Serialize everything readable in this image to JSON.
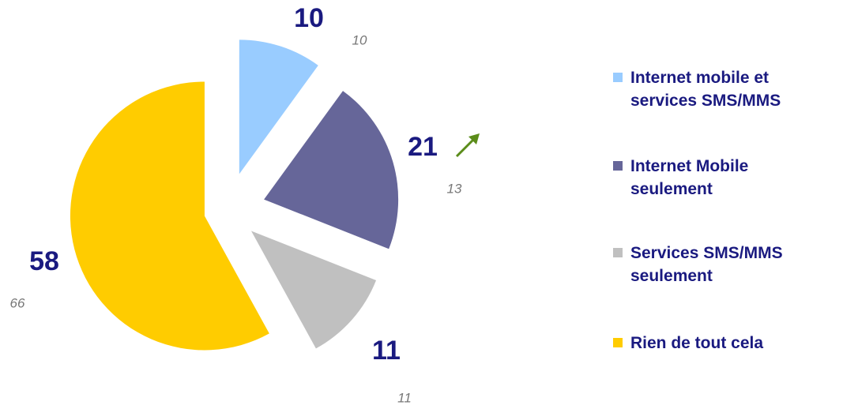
{
  "chart_data": {
    "type": "pie",
    "categories": [
      "Internet mobile et services SMS/MMS",
      "Internet Mobile seulement",
      "Services SMS/MMS seulement",
      "Rien de tout cela"
    ],
    "values": [
      10,
      21,
      11,
      58
    ],
    "previous_values": [
      10,
      13,
      11,
      66
    ],
    "colors": [
      "#99ccff",
      "#666699",
      "#c0c0c0",
      "#ffcc00"
    ],
    "legend": "right"
  }
}
